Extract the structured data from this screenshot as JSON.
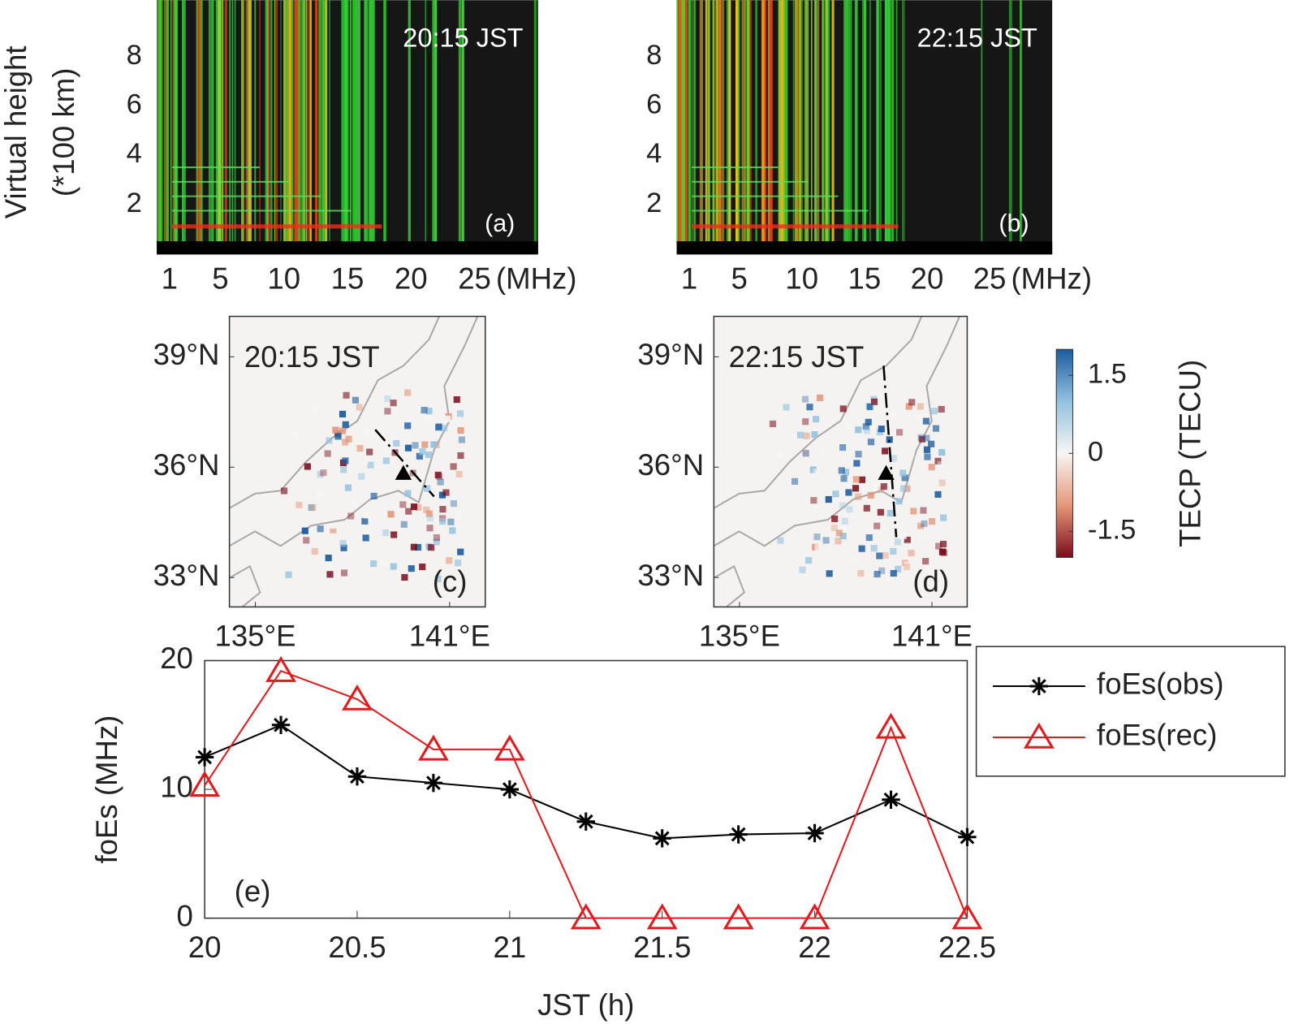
{
  "chart_data": [
    {
      "type": "ionogram",
      "annotations": [
        "20:15 JST",
        "(a)"
      ],
      "ylabel": [
        "Virtual height",
        "(*100 km)"
      ],
      "xunit": "(MHz)",
      "xlim": [
        0,
        30
      ],
      "ylim": [
        0.5,
        10.3
      ],
      "xticks": [
        1,
        5,
        10,
        15,
        20,
        25
      ],
      "yticks": [
        2,
        4,
        6,
        8
      ]
    },
    {
      "type": "ionogram",
      "annotations": [
        "22:15 JST",
        "(b)"
      ],
      "xunit": "(MHz)",
      "xlim": [
        0,
        30
      ],
      "ylim": [
        0.5,
        10.3
      ],
      "xticks": [
        1,
        5,
        10,
        15,
        20,
        25
      ],
      "yticks": [
        2,
        4,
        6,
        8
      ]
    },
    {
      "type": "map",
      "annotations": [
        "20:15 JST",
        "(c)"
      ],
      "xlim": [
        134.2,
        142.1
      ],
      "ylim": [
        32.2,
        40.1
      ],
      "xticks": [
        {
          "value": 135,
          "label": "135°E"
        },
        {
          "value": 141,
          "label": "141°E"
        }
      ],
      "yticks": [
        {
          "value": 33,
          "label": "33°N"
        },
        {
          "value": 36,
          "label": "36°N"
        },
        {
          "value": 39,
          "label": "39°N"
        }
      ]
    },
    {
      "type": "map",
      "annotations": [
        "22:15 JST",
        "(d)"
      ],
      "xlim": [
        134.2,
        142.1
      ],
      "ylim": [
        32.2,
        40.1
      ],
      "xticks": [
        {
          "value": 135,
          "label": "135°E"
        },
        {
          "value": 141,
          "label": "141°E"
        }
      ],
      "yticks": [
        {
          "value": 33,
          "label": "33°N"
        },
        {
          "value": 36,
          "label": "36°N"
        },
        {
          "value": 39,
          "label": "39°N"
        }
      ]
    },
    {
      "type": "colorbar",
      "label": "TECP (TECU)",
      "clim": [
        -2,
        2
      ],
      "ticks": [
        -1.5,
        0,
        1.5
      ],
      "colors": [
        "#7a0c1c",
        "#e6977a",
        "#f7f5f2",
        "#93c2df",
        "#1b5b9e"
      ]
    },
    {
      "type": "line",
      "xlabel": "JST (h)",
      "ylabel": "foEs (MHz)",
      "annotations": [
        "(e)"
      ],
      "x": [
        20,
        20.25,
        20.5,
        20.75,
        21,
        21.25,
        21.5,
        21.75,
        22,
        22.25,
        22.5
      ],
      "series": [
        {
          "name": "foEs(obs)",
          "color": "#000000",
          "marker": "asterisk",
          "values": [
            12.5,
            15,
            11,
            10.5,
            10,
            7.5,
            6.2,
            6.5,
            6.6,
            9.2,
            6.3
          ]
        },
        {
          "name": "foEs(rec)",
          "color": "#e41a1c",
          "marker": "triangle",
          "values": [
            10.3,
            19.2,
            17,
            13.1,
            13.1,
            0,
            0,
            0,
            0,
            14.8,
            0
          ]
        }
      ],
      "xlim": [
        20,
        22.5
      ],
      "ylim": [
        0,
        20
      ],
      "xticks": [
        20,
        20.5,
        21,
        21.5,
        22,
        22.5
      ],
      "yticks": [
        0,
        10,
        20
      ],
      "legend": "outside-right"
    }
  ]
}
